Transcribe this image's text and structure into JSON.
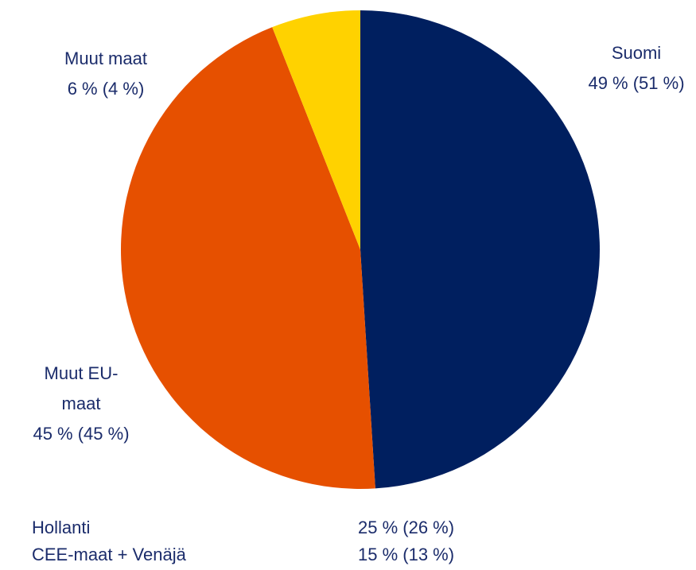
{
  "chart_data": {
    "type": "pie",
    "categories": [
      "Suomi",
      "Muut EU-maat",
      "Muut maat"
    ],
    "values": [
      49,
      45,
      6
    ],
    "value_labels": [
      "49 % (51 %)",
      "45 % (45 %)",
      "6 % (4 %)"
    ],
    "colors": [
      "#001f5f",
      "#e65000",
      "#ffd200"
    ],
    "annotations": [
      [
        "Hollanti",
        "25 % (26 %)"
      ],
      [
        "CEE-maat + Venäjä",
        "15 % (13 %)"
      ]
    ]
  }
}
